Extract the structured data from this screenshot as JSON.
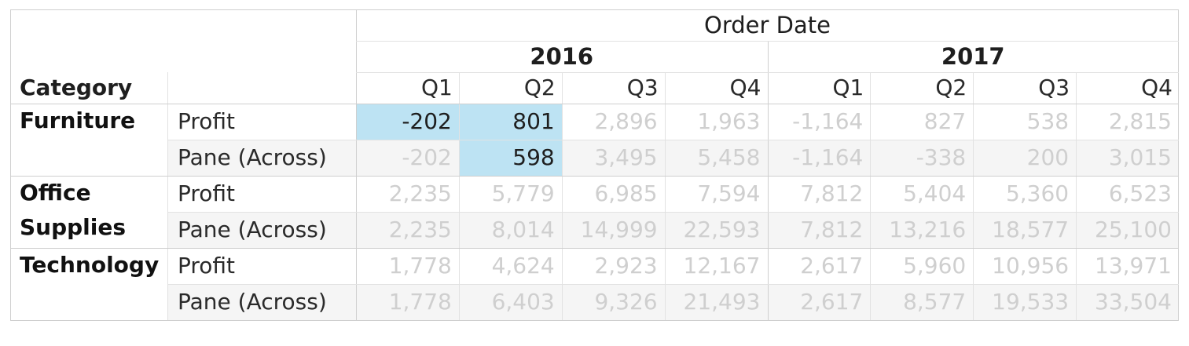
{
  "column_header": {
    "title": "Order Date",
    "years": [
      {
        "label": "2016",
        "quarters": [
          "Q1",
          "Q2",
          "Q3",
          "Q4"
        ]
      },
      {
        "label": "2017",
        "quarters": [
          "Q1",
          "Q2",
          "Q3",
          "Q4"
        ]
      }
    ]
  },
  "row_header": {
    "title": "Category"
  },
  "categories": [
    {
      "name": "Furniture",
      "rows": [
        {
          "measure": "Profit",
          "values": [
            "-202",
            "801",
            "2,896",
            "1,963",
            "-1,164",
            "827",
            "538",
            "2,815"
          ]
        },
        {
          "measure": "Pane (Across)",
          "values": [
            "-202",
            "598",
            "3,495",
            "5,458",
            "-1,164",
            "-338",
            "200",
            "3,015"
          ]
        }
      ]
    },
    {
      "name": "Office Supplies",
      "rows": [
        {
          "measure": "Profit",
          "values": [
            "2,235",
            "5,779",
            "6,985",
            "7,594",
            "7,812",
            "5,404",
            "5,360",
            "6,523"
          ]
        },
        {
          "measure": "Pane (Across)",
          "values": [
            "2,235",
            "8,014",
            "14,999",
            "22,593",
            "7,812",
            "13,216",
            "18,577",
            "25,100"
          ]
        }
      ]
    },
    {
      "name": "Technology",
      "rows": [
        {
          "measure": "Profit",
          "values": [
            "1,778",
            "4,624",
            "2,923",
            "12,167",
            "2,617",
            "5,960",
            "10,956",
            "13,971"
          ]
        },
        {
          "measure": "Pane (Across)",
          "values": [
            "1,778",
            "6,403",
            "9,326",
            "21,493",
            "2,617",
            "8,577",
            "19,533",
            "33,504"
          ]
        }
      ]
    }
  ],
  "highlighted_cells": [
    {
      "category": "Furniture",
      "measure": "Profit",
      "year": "2016",
      "quarter": "Q1"
    },
    {
      "category": "Furniture",
      "measure": "Profit",
      "year": "2016",
      "quarter": "Q2"
    },
    {
      "category": "Furniture",
      "measure": "Pane (Across)",
      "year": "2016",
      "quarter": "Q2"
    }
  ],
  "colors": {
    "highlight": "#bde3f3",
    "dim_text": "#cfcfcf",
    "header_text": "#1e1e1e",
    "band": "#f5f5f5"
  }
}
